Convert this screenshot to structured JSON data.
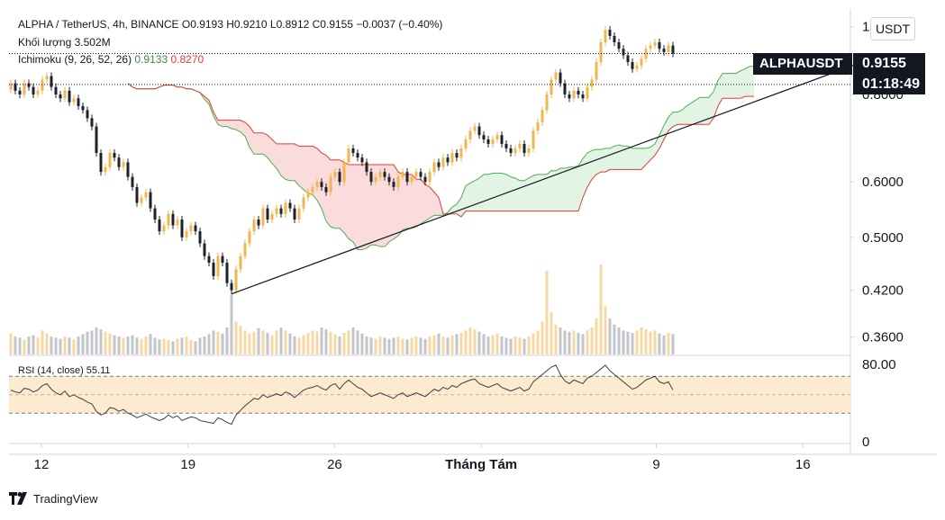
{
  "legend": {
    "line1": "ALPHA / TetherUS, 4h, BINANCE  O0.9193  H0.9210  L0.8912  C0.9155  −0.0037 (−0.40%)",
    "volume": "Khối lượng  3.502M",
    "ichimoku_label": "Ichimoku (9, 26, 52, 26)",
    "ichimoku_v1": "0.9133",
    "ichimoku_v2": "0.8270",
    "rsi_label": "RSI (14, close)  55.11"
  },
  "currency": "USDT",
  "symbol_tag": "ALPHAUSDT",
  "last_price": "0.9155",
  "countdown": "01:18:49",
  "brand": "TradingView",
  "colors": {
    "up": "#f0b64c",
    "down": "#1e222d",
    "ichimoku_green": "#4caf50",
    "ichimoku_red": "#e53935",
    "cloud_bull": "#e2f4e3",
    "cloud_bear": "#fbdcdc",
    "rsi_band": "#fdebd0"
  },
  "chart_data": {
    "type": "candlestick",
    "y_scale": "log",
    "ylim": [
      0.34,
      1.06
    ],
    "y_ticks": [
      "1.0000",
      "0.8000",
      "0.6000",
      "0.5000",
      "0.4200",
      "0.3600"
    ],
    "x_ticks": [
      "12",
      "19",
      "26",
      "Tháng Tám",
      "9",
      "16"
    ],
    "close": [
      0.83,
      0.81,
      0.8,
      0.83,
      0.82,
      0.8,
      0.81,
      0.84,
      0.85,
      0.82,
      0.8,
      0.79,
      0.81,
      0.78,
      0.79,
      0.77,
      0.76,
      0.74,
      0.72,
      0.66,
      0.62,
      0.63,
      0.66,
      0.65,
      0.63,
      0.64,
      0.61,
      0.59,
      0.56,
      0.57,
      0.58,
      0.55,
      0.53,
      0.51,
      0.52,
      0.54,
      0.52,
      0.53,
      0.5,
      0.51,
      0.52,
      0.51,
      0.49,
      0.47,
      0.46,
      0.44,
      0.47,
      0.46,
      0.43,
      0.42,
      0.45,
      0.47,
      0.49,
      0.51,
      0.53,
      0.52,
      0.55,
      0.53,
      0.54,
      0.55,
      0.54,
      0.56,
      0.55,
      0.53,
      0.55,
      0.57,
      0.58,
      0.59,
      0.6,
      0.59,
      0.58,
      0.61,
      0.62,
      0.6,
      0.64,
      0.67,
      0.66,
      0.65,
      0.64,
      0.62,
      0.6,
      0.61,
      0.62,
      0.61,
      0.6,
      0.59,
      0.61,
      0.62,
      0.6,
      0.61,
      0.62,
      0.61,
      0.6,
      0.62,
      0.64,
      0.63,
      0.65,
      0.64,
      0.66,
      0.65,
      0.67,
      0.69,
      0.71,
      0.72,
      0.7,
      0.69,
      0.68,
      0.69,
      0.7,
      0.68,
      0.67,
      0.66,
      0.67,
      0.68,
      0.66,
      0.67,
      0.71,
      0.73,
      0.76,
      0.8,
      0.84,
      0.86,
      0.83,
      0.8,
      0.79,
      0.81,
      0.8,
      0.79,
      0.82,
      0.84,
      0.89,
      0.95,
      0.99,
      0.97,
      0.95,
      0.93,
      0.91,
      0.89,
      0.87,
      0.88,
      0.9,
      0.93,
      0.94,
      0.95,
      0.93,
      0.92,
      0.94,
      0.9155
    ],
    "volume": [
      0.35,
      0.3,
      0.28,
      0.25,
      0.3,
      0.32,
      0.28,
      0.4,
      0.35,
      0.3,
      0.28,
      0.26,
      0.3,
      0.28,
      0.25,
      0.3,
      0.34,
      0.38,
      0.4,
      0.45,
      0.42,
      0.38,
      0.35,
      0.32,
      0.3,
      0.28,
      0.3,
      0.32,
      0.28,
      0.26,
      0.3,
      0.34,
      0.28,
      0.25,
      0.26,
      0.24,
      0.22,
      0.26,
      0.28,
      0.3,
      0.24,
      0.22,
      0.28,
      0.3,
      0.34,
      0.4,
      0.38,
      0.35,
      0.45,
      1.0,
      0.55,
      0.48,
      0.4,
      0.35,
      0.38,
      0.44,
      0.4,
      0.36,
      0.32,
      0.4,
      0.45,
      0.4,
      0.35,
      0.3,
      0.28,
      0.32,
      0.36,
      0.4,
      0.38,
      0.45,
      0.42,
      0.38,
      0.34,
      0.3,
      0.36,
      0.4,
      0.45,
      0.4,
      0.35,
      0.3,
      0.28,
      0.26,
      0.3,
      0.28,
      0.26,
      0.28,
      0.3,
      0.26,
      0.25,
      0.28,
      0.3,
      0.28,
      0.26,
      0.3,
      0.32,
      0.35,
      0.3,
      0.28,
      0.32,
      0.34,
      0.36,
      0.4,
      0.45,
      0.42,
      0.38,
      0.34,
      0.3,
      0.32,
      0.35,
      0.3,
      0.28,
      0.26,
      0.3,
      0.28,
      0.26,
      0.3,
      0.35,
      0.4,
      0.55,
      1.4,
      0.7,
      0.5,
      0.45,
      0.4,
      0.38,
      0.4,
      0.36,
      0.34,
      0.4,
      0.45,
      0.6,
      1.5,
      0.8,
      0.6,
      0.5,
      0.45,
      0.4,
      0.38,
      0.36,
      0.4,
      0.45,
      0.42,
      0.38,
      0.4,
      0.35,
      0.32,
      0.36,
      0.34
    ],
    "rsi": [
      55,
      53,
      52,
      57,
      56,
      53,
      55,
      60,
      62,
      56,
      52,
      50,
      54,
      48,
      50,
      47,
      45,
      42,
      40,
      32,
      28,
      30,
      36,
      35,
      32,
      34,
      30,
      28,
      25,
      27,
      29,
      26,
      24,
      22,
      24,
      28,
      25,
      27,
      22,
      24,
      26,
      25,
      22,
      21,
      20,
      19,
      25,
      23,
      20,
      18,
      28,
      33,
      38,
      42,
      46,
      45,
      50,
      47,
      49,
      51,
      49,
      53,
      51,
      47,
      51,
      55,
      57,
      58,
      60,
      57,
      55,
      60,
      62,
      56,
      62,
      66,
      62,
      58,
      56,
      52,
      48,
      50,
      52,
      50,
      48,
      46,
      50,
      52,
      48,
      50,
      52,
      50,
      48,
      52,
      56,
      54,
      58,
      56,
      60,
      58,
      62,
      64,
      66,
      67,
      62,
      60,
      58,
      60,
      62,
      58,
      56,
      54,
      56,
      58,
      54,
      56,
      64,
      68,
      72,
      76,
      80,
      82,
      72,
      65,
      62,
      66,
      64,
      62,
      68,
      70,
      74,
      78,
      82,
      76,
      72,
      68,
      64,
      60,
      56,
      58,
      62,
      66,
      68,
      70,
      64,
      62,
      64,
      55.11
    ],
    "rsi_levels": {
      "upper": 70,
      "lower": 30
    },
    "rsi_ticks": [
      "80.00",
      "0"
    ],
    "trendline": {
      "from": [
        49,
        0.415
      ],
      "to": [
        187,
        0.88
      ]
    }
  }
}
